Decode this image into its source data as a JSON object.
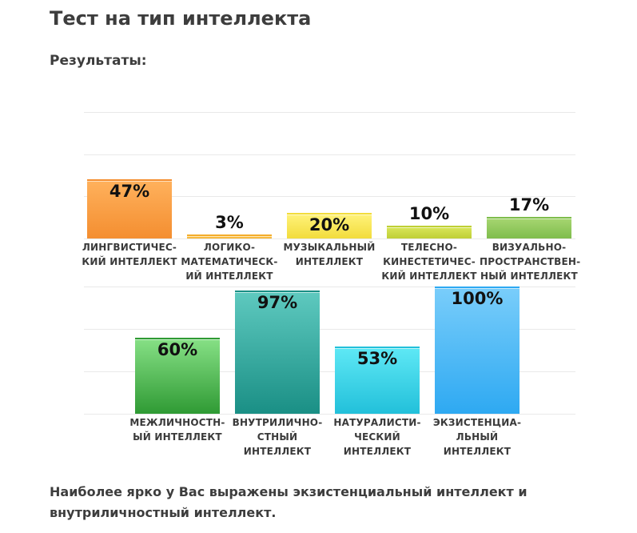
{
  "page": {
    "title": "Тест на тип интеллекта",
    "results_label": "Результаты:",
    "summary": "Наиболее ярко у Вас выражены экзистенциальный интеллект и внутриличностный интеллект."
  },
  "chart_data": [
    {
      "type": "bar",
      "ylim": [
        0,
        100
      ],
      "grid": true,
      "series": [
        {
          "values": [
            47,
            3,
            20,
            10,
            17
          ],
          "value_labels": [
            "47%",
            "3%",
            "20%",
            "10%",
            "17%"
          ],
          "categories": [
            [
              "ЛИНГВИСТИЧЕС-",
              "КИЙ ИНТЕЛЛЕКТ"
            ],
            [
              "ЛОГИКО-",
              "МАТЕМАТИЧЕСК-",
              "ИЙ ИНТЕЛЛЕКТ"
            ],
            [
              "МУЗЫКАЛЬНЫЙ",
              "ИНТЕЛЛЕКТ"
            ],
            [
              "ТЕЛЕСНО-",
              "КИНЕСТЕТИЧЕС-",
              "КИЙ ИНТЕЛЛЕКТ"
            ],
            [
              "ВИЗУАЛЬНО-",
              "ПРОСТРАНСТВЕН-",
              "НЫЙ ИНТЕЛЛЕКТ"
            ]
          ],
          "colors": [
            [
              "#ffb15c",
              "#f48e30"
            ],
            [
              "#ffcf5c",
              "#f4ad2c"
            ],
            [
              "#fff27a",
              "#f2dc3c"
            ],
            [
              "#d9e65a",
              "#bfcf35"
            ],
            [
              "#a6d671",
              "#7fbd4c"
            ]
          ]
        }
      ]
    },
    {
      "type": "bar",
      "ylim": [
        0,
        100
      ],
      "grid": true,
      "series": [
        {
          "values": [
            60,
            97,
            53,
            100
          ],
          "value_labels": [
            "60%",
            "97%",
            "53%",
            "100%"
          ],
          "categories": [
            [
              "МЕЖЛИЧНОСТН-",
              "ЫЙ ИНТЕЛЛЕКТ"
            ],
            [
              "ВНУТРИЛИЧНО-",
              "СТНЫЙ",
              "ИНТЕЛЛЕКТ"
            ],
            [
              "НАТУРАЛИСТИ-",
              "ЧЕСКИЙ",
              "ИНТЕЛЛЕКТ"
            ],
            [
              "ЭКЗИСТЕНЦИА-",
              "ЛЬНЫЙ",
              "ИНТЕЛЛЕКТ"
            ]
          ],
          "colors": [
            [
              "#86e085",
              "#2f9a34"
            ],
            [
              "#5ec9bf",
              "#1a8f85"
            ],
            [
              "#5ee8f5",
              "#22c0da"
            ],
            [
              "#79cdfa",
              "#2ea9f2"
            ]
          ]
        }
      ]
    }
  ]
}
